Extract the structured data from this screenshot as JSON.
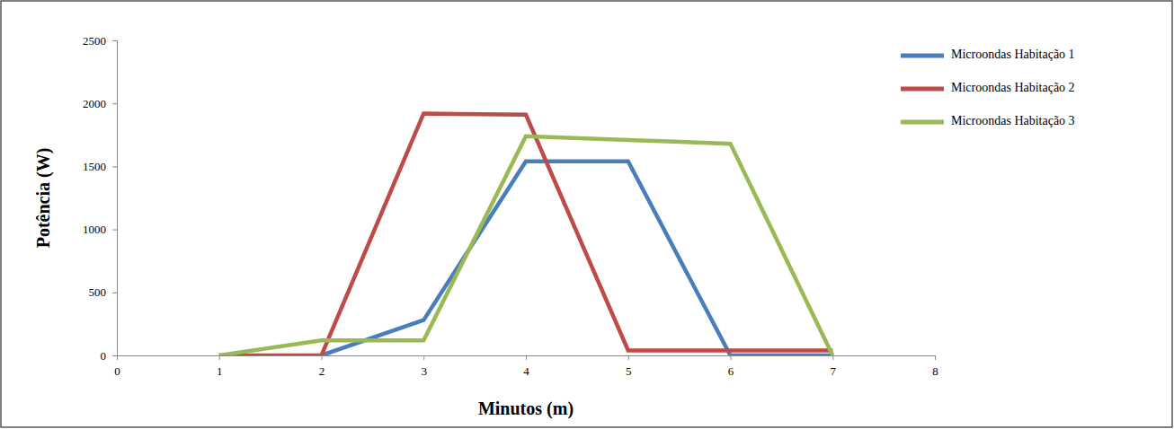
{
  "chart_data": {
    "type": "line",
    "x_label": "Minutos (m)",
    "y_label": "Potência (W)",
    "x": [
      1,
      2,
      3,
      4,
      5,
      6,
      7
    ],
    "series": [
      {
        "name": "Microondas Habitação 1",
        "color": "#4a7ebb",
        "values": [
          null,
          0,
          280,
          1540,
          1540,
          0,
          0
        ]
      },
      {
        "name": "Microondas Habitação 2",
        "color": "#be4b48",
        "values": [
          0,
          0,
          1920,
          1910,
          40,
          40,
          40
        ]
      },
      {
        "name": "Microondas Habitação 3",
        "color": "#98b954",
        "values": [
          0,
          120,
          120,
          1740,
          1710,
          1680,
          0
        ]
      }
    ],
    "xlim": [
      0,
      8
    ],
    "xticks": [
      0,
      1,
      2,
      3,
      4,
      5,
      6,
      7,
      8
    ],
    "ylim": [
      0,
      2500
    ],
    "yticks": [
      0,
      500,
      1000,
      1500,
      2000,
      2500
    ],
    "grid": false,
    "legend": "top-right"
  }
}
